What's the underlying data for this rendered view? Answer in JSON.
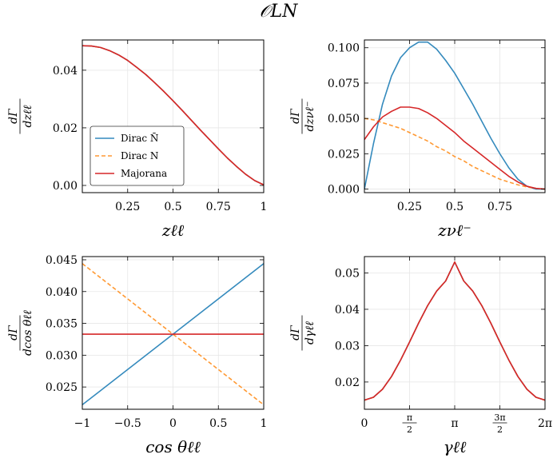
{
  "figure": {
    "suptitle": "𝒪LN"
  },
  "chart_data": [
    {
      "type": "line",
      "panel": "top-left",
      "xlabel": "zℓℓ",
      "ylabel": "dΓ / dzℓℓ",
      "xlim": [
        0,
        1
      ],
      "ylim": [
        -0.0025,
        0.0505
      ],
      "xticks": [
        0.25,
        0.5,
        0.75,
        1
      ],
      "xtick_labels": [
        "0.25",
        "0.5",
        "0.75",
        "1"
      ],
      "yticks": [
        0.0,
        0.02,
        0.04
      ],
      "ytick_labels": [
        "0.00",
        "0.02",
        "0.04"
      ],
      "grid": true,
      "legend": "lower-left",
      "x": [
        0,
        0.05,
        0.1,
        0.15,
        0.2,
        0.25,
        0.3,
        0.35,
        0.4,
        0.45,
        0.5,
        0.55,
        0.6,
        0.65,
        0.7,
        0.75,
        0.8,
        0.85,
        0.9,
        0.95,
        1.0
      ],
      "series": [
        {
          "name": "Dirac N̄",
          "color": "#348ABD",
          "dash": "solid",
          "values": [
            0.0485,
            0.0484,
            0.0479,
            0.0468,
            0.0453,
            0.0434,
            0.041,
            0.0385,
            0.0356,
            0.0326,
            0.0294,
            0.0261,
            0.0227,
            0.0193,
            0.016,
            0.0127,
            0.0095,
            0.0066,
            0.0039,
            0.0017,
            0.0002
          ]
        },
        {
          "name": "Dirac N",
          "color": "#FF9933",
          "dash": "dashed",
          "values": [
            0.0485,
            0.0484,
            0.0479,
            0.0468,
            0.0453,
            0.0434,
            0.041,
            0.0385,
            0.0356,
            0.0326,
            0.0294,
            0.0261,
            0.0227,
            0.0193,
            0.016,
            0.0127,
            0.0095,
            0.0066,
            0.0039,
            0.0017,
            0.0002
          ]
        },
        {
          "name": "Majorana",
          "color": "#D62728",
          "dash": "solid",
          "values": [
            0.0485,
            0.0484,
            0.0479,
            0.0468,
            0.0453,
            0.0434,
            0.041,
            0.0385,
            0.0356,
            0.0326,
            0.0294,
            0.0261,
            0.0227,
            0.0193,
            0.016,
            0.0127,
            0.0095,
            0.0066,
            0.0039,
            0.0017,
            0.0002
          ]
        }
      ]
    },
    {
      "type": "line",
      "panel": "top-right",
      "xlabel": "zνℓ⁻",
      "ylabel": "dΓ / dzνℓ⁻",
      "xlim": [
        0,
        1
      ],
      "ylim": [
        -0.0025,
        0.1055
      ],
      "xticks": [
        0.25,
        0.5,
        0.75
      ],
      "xtick_labels": [
        "0.25",
        "0.5",
        "0.75"
      ],
      "yticks": [
        0.0,
        0.025,
        0.05,
        0.075,
        0.1
      ],
      "ytick_labels": [
        "0.000",
        "0.025",
        "0.050",
        "0.075",
        "0.100"
      ],
      "grid": true,
      "x": [
        0,
        0.05,
        0.1,
        0.15,
        0.2,
        0.25,
        0.3,
        0.35,
        0.4,
        0.45,
        0.5,
        0.55,
        0.6,
        0.65,
        0.7,
        0.75,
        0.8,
        0.85,
        0.9,
        0.95,
        1.0
      ],
      "series": [
        {
          "name": "Dirac N̄",
          "color": "#348ABD",
          "dash": "solid",
          "values": [
            0.0,
            0.032,
            0.06,
            0.08,
            0.093,
            0.1,
            0.104,
            0.104,
            0.099,
            0.091,
            0.082,
            0.071,
            0.06,
            0.048,
            0.036,
            0.025,
            0.015,
            0.007,
            0.002,
            0.0,
            0.0
          ]
        },
        {
          "name": "Dirac N",
          "color": "#FF9933",
          "dash": "dashed",
          "values": [
            0.05,
            0.049,
            0.047,
            0.045,
            0.043,
            0.04,
            0.037,
            0.034,
            0.03,
            0.027,
            0.023,
            0.02,
            0.016,
            0.013,
            0.01,
            0.007,
            0.005,
            0.003,
            0.0015,
            0.0005,
            0.0
          ]
        },
        {
          "name": "Majorana",
          "color": "#D62728",
          "dash": "solid",
          "values": [
            0.035,
            0.044,
            0.051,
            0.055,
            0.058,
            0.058,
            0.057,
            0.054,
            0.05,
            0.045,
            0.04,
            0.034,
            0.029,
            0.024,
            0.019,
            0.014,
            0.009,
            0.005,
            0.002,
            0.0005,
            0.0
          ]
        }
      ]
    },
    {
      "type": "line",
      "panel": "bottom-left",
      "xlabel": "cos θℓℓ",
      "ylabel": "dΓ / dcos θℓℓ",
      "xlim": [
        -1,
        1
      ],
      "ylim": [
        0.0215,
        0.0455
      ],
      "xticks": [
        -1,
        -0.5,
        0,
        0.5,
        1
      ],
      "xtick_labels": [
        "−1",
        "−0.5",
        "0",
        "0.5",
        "1"
      ],
      "yticks": [
        0.025,
        0.03,
        0.035,
        0.04,
        0.045
      ],
      "ytick_labels": [
        "0.025",
        "0.030",
        "0.035",
        "0.040",
        "0.045"
      ],
      "grid": true,
      "x": [
        -1,
        1
      ],
      "series": [
        {
          "name": "Dirac N̄",
          "color": "#348ABD",
          "dash": "solid",
          "values": [
            0.0222,
            0.0444
          ]
        },
        {
          "name": "Dirac N",
          "color": "#FF9933",
          "dash": "dashed",
          "values": [
            0.0444,
            0.0222
          ]
        },
        {
          "name": "Majorana",
          "color": "#D62728",
          "dash": "solid",
          "values": [
            0.0333,
            0.0333
          ]
        }
      ]
    },
    {
      "type": "line",
      "panel": "bottom-right",
      "xlabel": "γℓℓ",
      "ylabel": "dΓ / dγℓℓ",
      "xlim": [
        0,
        6.2832
      ],
      "ylim": [
        0.0125,
        0.0545
      ],
      "xticks": [
        0,
        1.5708,
        3.1416,
        4.7124,
        6.2832
      ],
      "xtick_labels": [
        "0",
        "π/2",
        "π",
        "3π/2",
        "2π"
      ],
      "yticks": [
        0.02,
        0.03,
        0.04,
        0.05
      ],
      "ytick_labels": [
        "0.02",
        "0.03",
        "0.04",
        "0.05"
      ],
      "grid": true,
      "x": [
        0,
        0.3142,
        0.6283,
        0.9425,
        1.2566,
        1.5708,
        1.885,
        2.1991,
        2.5133,
        2.8274,
        3.1416,
        3.4558,
        3.7699,
        4.0841,
        4.3982,
        4.7124,
        5.0265,
        5.3407,
        5.6549,
        5.969,
        6.2832
      ],
      "series": [
        {
          "name": "Dirac N̄",
          "color": "#348ABD",
          "dash": "solid",
          "values": [
            0.015,
            0.0158,
            0.018,
            0.0215,
            0.026,
            0.031,
            0.0362,
            0.041,
            0.045,
            0.0478,
            0.053,
            0.0478,
            0.045,
            0.041,
            0.0362,
            0.031,
            0.026,
            0.0215,
            0.018,
            0.0158,
            0.015
          ]
        },
        {
          "name": "Dirac N",
          "color": "#FF9933",
          "dash": "dashed",
          "values": [
            0.015,
            0.0158,
            0.018,
            0.0215,
            0.026,
            0.031,
            0.0362,
            0.041,
            0.045,
            0.0478,
            0.053,
            0.0478,
            0.045,
            0.041,
            0.0362,
            0.031,
            0.026,
            0.0215,
            0.018,
            0.0158,
            0.015
          ]
        },
        {
          "name": "Majorana",
          "color": "#D62728",
          "dash": "solid",
          "values": [
            0.015,
            0.0158,
            0.018,
            0.0215,
            0.026,
            0.031,
            0.0362,
            0.041,
            0.045,
            0.0478,
            0.053,
            0.0478,
            0.045,
            0.041,
            0.0362,
            0.031,
            0.026,
            0.0215,
            0.018,
            0.0158,
            0.015
          ]
        }
      ]
    }
  ]
}
